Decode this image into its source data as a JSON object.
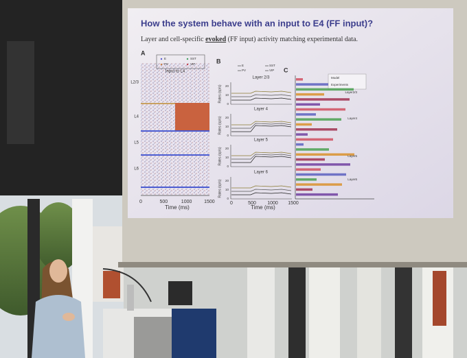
{
  "slide": {
    "title": "How the system behave with an input to E4 (FF input)?",
    "subtitle": [
      "Layer and cell-specific ",
      "evoked",
      " (FF input) activity matching experimental data."
    ],
    "panel_a": {
      "label": "A",
      "legend": [
        "E",
        "PV",
        "SST",
        "VIP"
      ],
      "input_label": "Input to L4",
      "layers": [
        "L2/3",
        "L4",
        "L5",
        "L6"
      ],
      "xticks": [
        "0",
        "500",
        "1000",
        "1500"
      ],
      "xlabel": "Time (ms)"
    },
    "panel_b": {
      "label": "B",
      "legend": [
        "E",
        "PV",
        "SST",
        "VIP"
      ],
      "titles": [
        "Layer 2/3",
        "Layer 4",
        "Layer 5",
        "Layer 6"
      ],
      "ylabel": "Rates (sp/s)",
      "yticks": [
        "0",
        "10",
        "20"
      ],
      "xticks": [
        "0",
        "500",
        "1000",
        "1500"
      ],
      "xlabel": "Time (ms)"
    },
    "panel_c": {
      "label": "C",
      "legend": [
        "Model",
        "Experiments"
      ],
      "layers": [
        "Layer2/3",
        "Layer4",
        "Layer5",
        "Layer6"
      ]
    }
  }
}
